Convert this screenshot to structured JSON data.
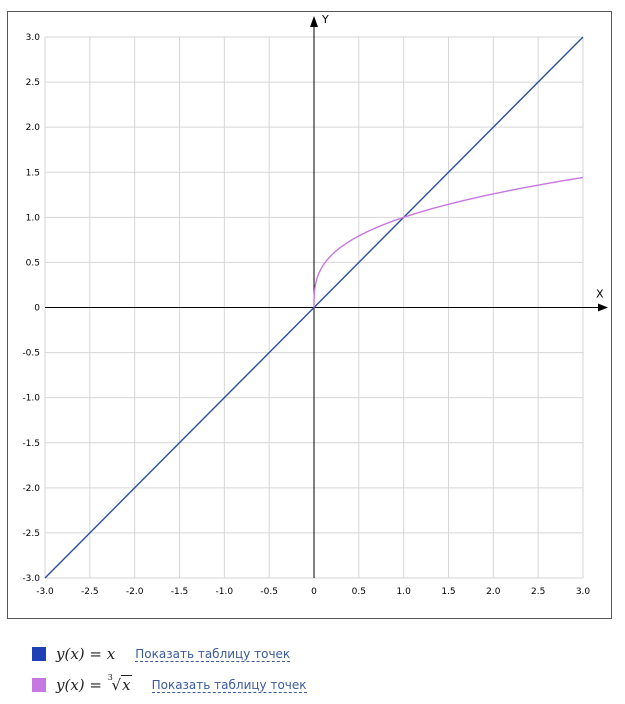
{
  "chart_data": {
    "type": "line",
    "xlabel": "X",
    "ylabel": "Y",
    "xlim": [
      -3.0,
      3.0
    ],
    "ylim": [
      -3.0,
      3.0
    ],
    "grid": true,
    "x_ticks": [
      "-3.0",
      "-2.5",
      "-2.0",
      "-1.5",
      "-1.0",
      "-0.5",
      "0",
      "0.5",
      "1.0",
      "1.5",
      "2.0",
      "2.5",
      "3.0"
    ],
    "y_ticks": [
      "3.0",
      "2.5",
      "2.0",
      "1.5",
      "1.0",
      "0.5",
      "0",
      "-0.5",
      "-1.0",
      "-1.5",
      "-2.0",
      "-2.5",
      "-3.0"
    ],
    "series": [
      {
        "name": "y(x) = x",
        "color": "#2b4f9e",
        "x": [
          -3.0,
          3.0
        ],
        "y": [
          -3.0,
          3.0
        ]
      },
      {
        "name": "y(x) = ∛x",
        "color": "#c777e0",
        "x": [
          0,
          0.001,
          0.01,
          0.05,
          0.1,
          0.2,
          0.3,
          0.5,
          0.75,
          1.0,
          1.5,
          2.0,
          2.5,
          3.0
        ],
        "y": [
          0,
          0.1,
          0.215,
          0.368,
          0.464,
          0.585,
          0.669,
          0.794,
          0.909,
          1.0,
          1.145,
          1.26,
          1.357,
          1.442
        ]
      }
    ],
    "legend_position": "bottom-left"
  },
  "legend": {
    "items": [
      {
        "color": "#1f3fb5",
        "formula_lhs": "y(x)",
        "formula_eq": "=",
        "formula_rhs": "x",
        "link_label": "Показать таблицу точек"
      },
      {
        "color": "#c777e0",
        "formula_lhs": "y(x)",
        "formula_eq": "=",
        "root_index": "3",
        "radicand": "x",
        "link_label": "Показать таблицу точек"
      }
    ]
  }
}
